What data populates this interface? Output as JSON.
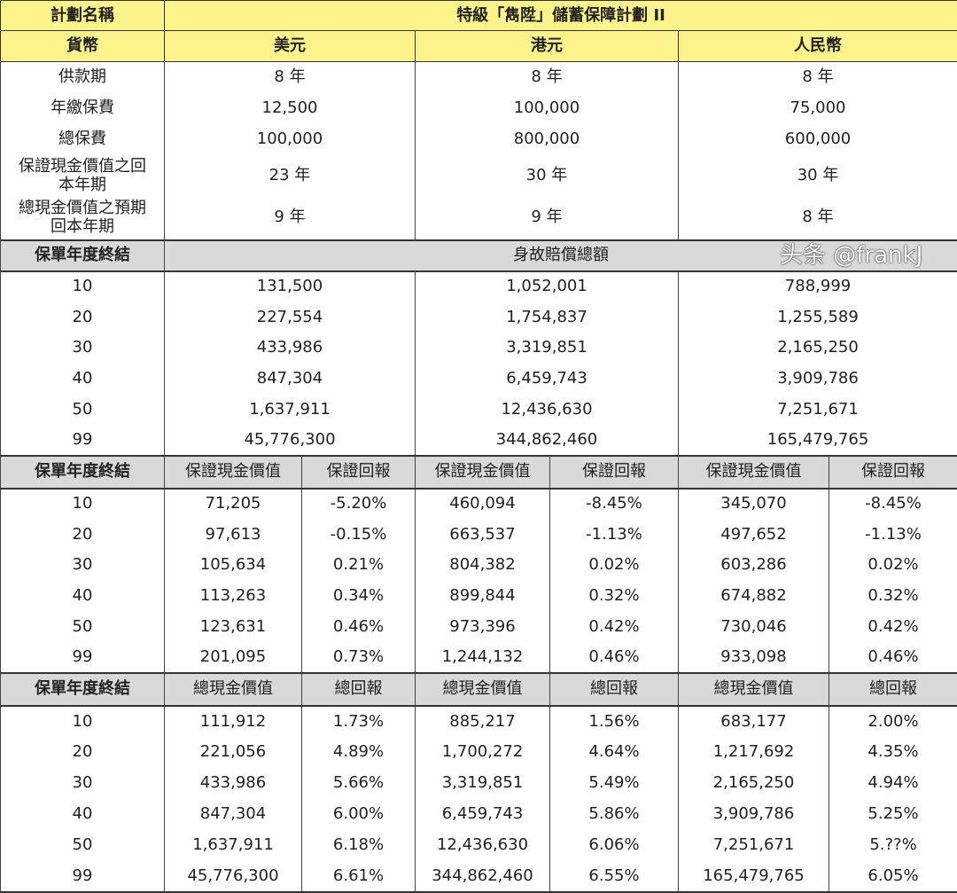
{
  "plan": {
    "label": "計劃名稱",
    "name": "特級「雋陞」儲蓄保障計劃 II"
  },
  "currency": {
    "label": "貨幣",
    "values": [
      "美元",
      "港元",
      "人民幣"
    ]
  },
  "info_rows": [
    {
      "label": "供款期",
      "values": [
        "8 年",
        "8 年",
        "8 年"
      ]
    },
    {
      "label": "年繳保費",
      "values": [
        "12,500",
        "100,000",
        "75,000"
      ]
    },
    {
      "label": "總保費",
      "values": [
        "100,000",
        "800,000",
        "600,000"
      ]
    },
    {
      "label": "保證現金價值之回本年期",
      "values": [
        "23 年",
        "30 年",
        "30 年"
      ]
    },
    {
      "label": "總現金價值之預期回本年期",
      "values": [
        "9 年",
        "9 年",
        "8 年"
      ]
    }
  ],
  "death_benefit": {
    "header": "保單年度終結",
    "title": "身故賠償總額",
    "rows": [
      [
        "10",
        "131,500",
        "1,052,001",
        "788,999"
      ],
      [
        "20",
        "227,554",
        "1,754,837",
        "1,255,589"
      ],
      [
        "30",
        "433,986",
        "3,319,851",
        "2,165,250"
      ],
      [
        "40",
        "847,304",
        "6,459,743",
        "3,909,786"
      ],
      [
        "50",
        "1,637,911",
        "12,436,630",
        "7,251,671"
      ],
      [
        "99",
        "45,776,300",
        "344,862,460",
        "165,479,765"
      ]
    ]
  },
  "guaranteed": {
    "headers": [
      "保單年度終結",
      "保證現金價值",
      "保證回報",
      "保證現金價值",
      "保證回報",
      "保證現金價值",
      "保證回報"
    ],
    "rows": [
      [
        "10",
        "71,205",
        "-5.20%",
        "460,094",
        "-8.45%",
        "345,070",
        "-8.45%"
      ],
      [
        "20",
        "97,613",
        "-0.15%",
        "663,537",
        "-1.13%",
        "497,652",
        "-1.13%"
      ],
      [
        "30",
        "105,634",
        "0.21%",
        "804,382",
        "0.02%",
        "603,286",
        "0.02%"
      ],
      [
        "40",
        "113,263",
        "0.34%",
        "899,844",
        "0.32%",
        "674,882",
        "0.32%"
      ],
      [
        "50",
        "123,631",
        "0.46%",
        "973,396",
        "0.42%",
        "730,046",
        "0.42%"
      ],
      [
        "99",
        "201,095",
        "0.73%",
        "1,244,132",
        "0.46%",
        "933,098",
        "0.46%"
      ]
    ]
  },
  "total": {
    "headers": [
      "保單年度終結",
      "總現金價值",
      "總回報",
      "總現金價值",
      "總回報",
      "總現金價值",
      "總回報"
    ],
    "rows": [
      [
        "10",
        "111,912",
        "1.73%",
        "885,217",
        "1.56%",
        "683,177",
        "2.00%"
      ],
      [
        "20",
        "221,056",
        "4.89%",
        "1,700,272",
        "4.64%",
        "1,217,692",
        "4.35%"
      ],
      [
        "30",
        "433,986",
        "5.66%",
        "3,319,851",
        "5.49%",
        "2,165,250",
        "4.94%"
      ],
      [
        "40",
        "847,304",
        "6.00%",
        "6,459,743",
        "5.86%",
        "3,909,786",
        "5.25%"
      ],
      [
        "50",
        "1,637,911",
        "6.18%",
        "12,436,630",
        "6.06%",
        "7,251,671",
        "5.??%"
      ],
      [
        "99",
        "45,776,300",
        "6.61%",
        "344,862,460",
        "6.55%",
        "165,479,765",
        "6.05%"
      ]
    ]
  },
  "watermark": "头条 @frankJ",
  "colors": {
    "header_yellow": "#fdf38b",
    "section_grey": "#d9d9d9"
  }
}
